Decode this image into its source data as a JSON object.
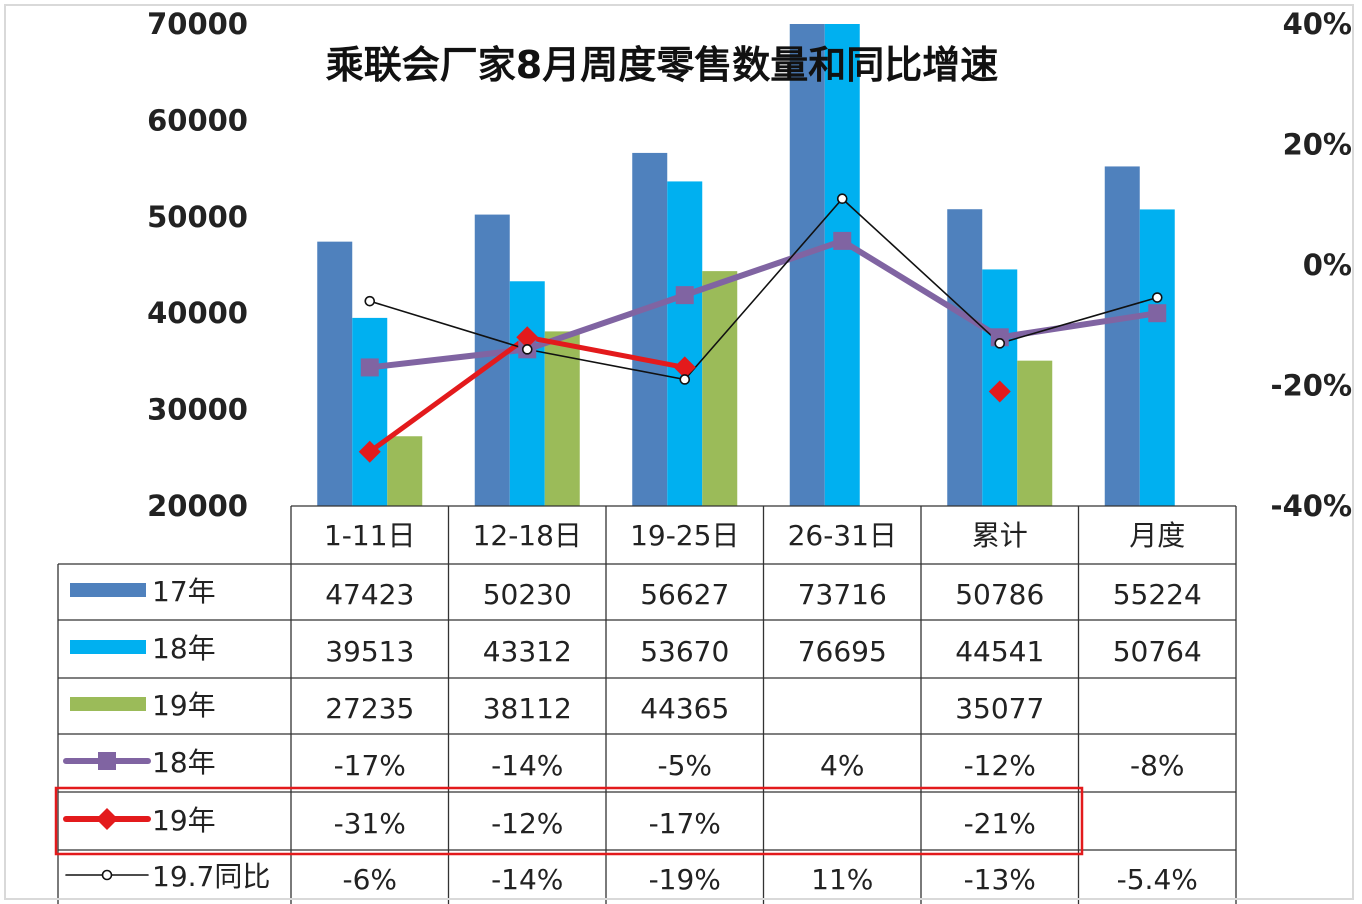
{
  "chart_data": {
    "type": "bar",
    "title": "乘联会厂家8月周度零售数量和同比增速",
    "categories": [
      "1-11日",
      "12-18日",
      "19-25日",
      "26-31日",
      "累计",
      "月度"
    ],
    "ylim": [
      20000,
      70000
    ],
    "y2lim": [
      -0.4,
      0.4
    ],
    "yticks": [
      "20000",
      "30000",
      "40000",
      "50000",
      "60000",
      "70000"
    ],
    "y2ticks": [
      "-40%",
      "-20%",
      "0%",
      "20%",
      "40%"
    ],
    "bar_series": [
      {
        "name": "17年",
        "color": "#4f81bd",
        "values": [
          47423,
          50230,
          56627,
          73716,
          50786,
          55224
        ],
        "labels": [
          "47423",
          "50230",
          "56627",
          "73716",
          "50786",
          "55224"
        ]
      },
      {
        "name": "18年",
        "color": "#00b0f0",
        "values": [
          39513,
          43312,
          53670,
          76695,
          44541,
          50764
        ],
        "labels": [
          "39513",
          "43312",
          "53670",
          "76695",
          "44541",
          "50764"
        ]
      },
      {
        "name": "19年",
        "color": "#9bbb59",
        "values": [
          27235,
          38112,
          44365,
          null,
          35077,
          null
        ],
        "labels": [
          "27235",
          "38112",
          "44365",
          "",
          "35077",
          ""
        ]
      }
    ],
    "line_series": [
      {
        "name": "18年",
        "color": "#8064a2",
        "marker": "square",
        "values": [
          -0.17,
          -0.14,
          -0.05,
          0.04,
          -0.12,
          -0.08
        ],
        "labels": [
          "-17%",
          "-14%",
          "-5%",
          "4%",
          "-12%",
          "-8%"
        ]
      },
      {
        "name": "19年",
        "color": "#e31a1c",
        "marker": "diamond",
        "values": [
          -0.31,
          -0.12,
          -0.17,
          null,
          -0.21,
          null
        ],
        "labels": [
          "-31%",
          "-12%",
          "-17%",
          "",
          "-21%",
          ""
        ]
      },
      {
        "name": "19.7同比",
        "color": "#111111",
        "marker": "circle",
        "values": [
          -0.06,
          -0.14,
          -0.19,
          0.11,
          -0.13,
          -0.054
        ],
        "labels": [
          "-6%",
          "-14%",
          "-19%",
          "11%",
          "-13%",
          "-5.4%"
        ]
      }
    ],
    "highlight_row": "19年",
    "highlight_color": "#e31a1c"
  }
}
